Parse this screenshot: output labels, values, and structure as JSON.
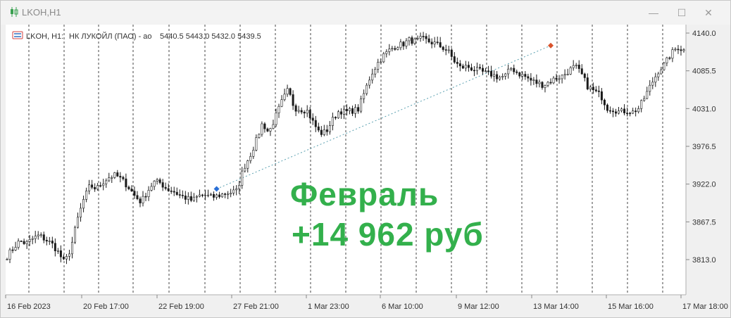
{
  "window": {
    "title": "LKOH,H1",
    "minimize_glyph": "—",
    "maximize_glyph": "☐",
    "close_glyph": "✕"
  },
  "colors": {
    "accent": "#33b04c",
    "candle": "#1a1a1a",
    "grid": "#444444",
    "connector": "#5aa0b0",
    "entry_marker": "#2a6fd6",
    "exit_marker": "#d9532c"
  },
  "chart_header": {
    "symbol": "LKOH, H1:",
    "description": "НК ЛУКОЙЛ (ПАО) - ao",
    "ohlc": "5440.5 5443.0 5432.0 5439.5"
  },
  "overlay": {
    "title": "Февраль",
    "subtitle": "+14 962 руб"
  },
  "chart_data": {
    "type": "candlestick",
    "title": "",
    "y_ticks": [
      4140.0,
      4085.5,
      4031.0,
      3976.5,
      3922.0,
      3867.5,
      3813.0
    ],
    "y_tick_labels": [
      "4140.0",
      "4085.5",
      "4031.0",
      "3976.5",
      "3922.0",
      "3867.5",
      "3813.0"
    ],
    "ylim": [
      3765,
      4150
    ],
    "x_tick_labels": [
      "16 Feb 2023",
      "20 Feb 17:00",
      "22 Feb 19:00",
      "27 Feb 21:00",
      "1 Mar 23:00",
      "6 Mar 10:00",
      "9 Mar 12:00",
      "13 Mar 14:00",
      "15 Mar 16:00",
      "17 Mar 18:00"
    ],
    "grid": "vertical-dashed",
    "trade": {
      "entry": {
        "bar": 74,
        "price": 3915
      },
      "exit": {
        "bar": 192,
        "price": 4122
      }
    },
    "key_closes": [
      3818,
      3830,
      3840,
      3836,
      3843,
      3848,
      3842,
      3836,
      3824,
      3808,
      3830,
      3870,
      3900,
      3920,
      3915,
      3925,
      3932,
      3935,
      3928,
      3918,
      3905,
      3896,
      3912,
      3925,
      3924,
      3915,
      3912,
      3906,
      3902,
      3898,
      3905,
      3906,
      3903,
      3905,
      3908,
      3910,
      3912,
      3944,
      3962,
      3984,
      4010,
      3996,
      4018,
      4040,
      4058,
      4032,
      4030,
      4028,
      4010,
      3995,
      3998,
      4015,
      4028,
      4026,
      4028,
      4030,
      4055,
      4080,
      4096,
      4108,
      4116,
      4122,
      4124,
      4130,
      4128,
      4132,
      4128,
      4125,
      4120,
      4115,
      4100,
      4090,
      4092,
      4088,
      4085,
      4082,
      4080,
      4076,
      4078,
      4090,
      4082,
      4078,
      4072,
      4068,
      4065,
      4070,
      4075,
      4078,
      4086,
      4092,
      4080,
      4062,
      4056,
      4050,
      4032,
      4030,
      4026,
      4028,
      4026,
      4032,
      4050,
      4068,
      4085,
      4095,
      4110,
      4120,
      4115
    ]
  }
}
